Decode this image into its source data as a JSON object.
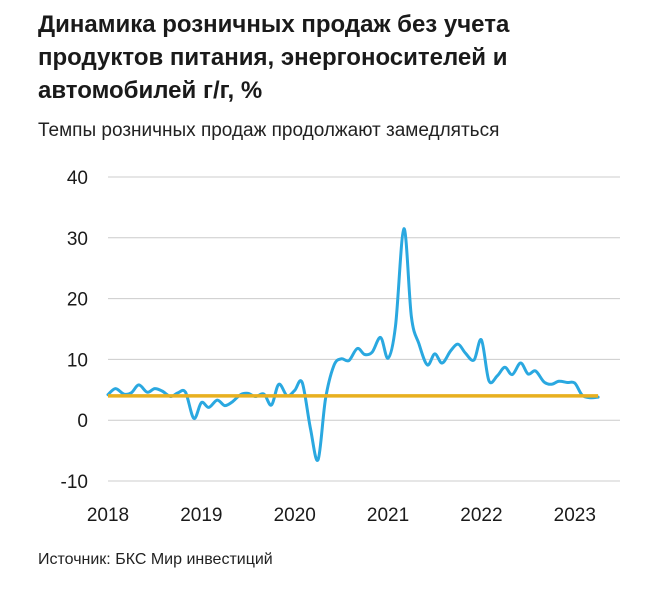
{
  "title": "Динамика розничных продаж без учета продуктов питания, энергоносителей и автомобилей г/г, %",
  "subtitle": "Темпы розничных продаж продолжают замедляться",
  "source": "Источник: БКС Мир инвестиций",
  "colors": {
    "series": "#2aa8e0",
    "reference": "#e8b020",
    "grid": "#cccccc"
  },
  "chart_data": {
    "type": "line",
    "title": "Динамика розничных продаж без учета продуктов питания, энергоносителей и автомобилей г/г, %",
    "subtitle": "Темпы розничных продаж продолжают замедляться",
    "xlabel": "",
    "ylabel": "",
    "ylim": [
      -10,
      40
    ],
    "xlim": [
      2018.0,
      2023.42
    ],
    "grid": true,
    "legend": "none",
    "y_ticks": [
      "40",
      "30",
      "20",
      "10",
      "0",
      "-10"
    ],
    "y_tick_values": [
      40,
      30,
      20,
      10,
      0,
      -10
    ],
    "x_ticks": [
      "2018",
      "2019",
      "2020",
      "2021",
      "2022",
      "2023"
    ],
    "x_tick_values": [
      2018,
      2019,
      2020,
      2021,
      2022,
      2023
    ],
    "series": [
      {
        "values": [
          [
            2018.0,
            4.2
          ],
          [
            2018.08,
            5.2
          ],
          [
            2018.17,
            4.3
          ],
          [
            2018.25,
            4.5
          ],
          [
            2018.33,
            5.8
          ],
          [
            2018.42,
            4.6
          ],
          [
            2018.5,
            5.2
          ],
          [
            2018.58,
            4.8
          ],
          [
            2018.67,
            3.9
          ],
          [
            2018.75,
            4.5
          ],
          [
            2018.83,
            4.6
          ],
          [
            2018.92,
            0.3
          ],
          [
            2019.0,
            2.9
          ],
          [
            2019.08,
            2.1
          ],
          [
            2019.17,
            3.3
          ],
          [
            2019.25,
            2.4
          ],
          [
            2019.33,
            3.0
          ],
          [
            2019.42,
            4.2
          ],
          [
            2019.5,
            4.4
          ],
          [
            2019.58,
            3.9
          ],
          [
            2019.67,
            4.3
          ],
          [
            2019.75,
            2.5
          ],
          [
            2019.83,
            5.9
          ],
          [
            2019.92,
            4.0
          ],
          [
            2020.0,
            4.9
          ],
          [
            2020.08,
            6.2
          ],
          [
            2020.17,
            -1.5
          ],
          [
            2020.25,
            -6.5
          ],
          [
            2020.33,
            3.5
          ],
          [
            2020.42,
            9.0
          ],
          [
            2020.5,
            10.1
          ],
          [
            2020.58,
            9.8
          ],
          [
            2020.67,
            11.8
          ],
          [
            2020.75,
            10.8
          ],
          [
            2020.83,
            11.2
          ],
          [
            2020.92,
            13.6
          ],
          [
            2021.0,
            10.2
          ],
          [
            2021.08,
            15.5
          ],
          [
            2021.17,
            31.5
          ],
          [
            2021.25,
            17.0
          ],
          [
            2021.33,
            12.6
          ],
          [
            2021.42,
            9.1
          ],
          [
            2021.5,
            10.9
          ],
          [
            2021.58,
            9.4
          ],
          [
            2021.67,
            11.4
          ],
          [
            2021.75,
            12.5
          ],
          [
            2021.83,
            11.0
          ],
          [
            2021.92,
            9.9
          ],
          [
            2022.0,
            13.2
          ],
          [
            2022.08,
            6.5
          ],
          [
            2022.17,
            7.3
          ],
          [
            2022.25,
            8.7
          ],
          [
            2022.33,
            7.5
          ],
          [
            2022.42,
            9.4
          ],
          [
            2022.5,
            7.6
          ],
          [
            2022.58,
            8.1
          ],
          [
            2022.67,
            6.3
          ],
          [
            2022.75,
            5.9
          ],
          [
            2022.83,
            6.4
          ],
          [
            2022.92,
            6.2
          ],
          [
            2023.0,
            6.1
          ],
          [
            2023.08,
            4.1
          ],
          [
            2023.17,
            3.7
          ],
          [
            2023.25,
            3.8
          ]
        ]
      },
      {
        "values": [
          [
            2018.0,
            4.0
          ],
          [
            2023.25,
            4.0
          ]
        ]
      }
    ]
  }
}
